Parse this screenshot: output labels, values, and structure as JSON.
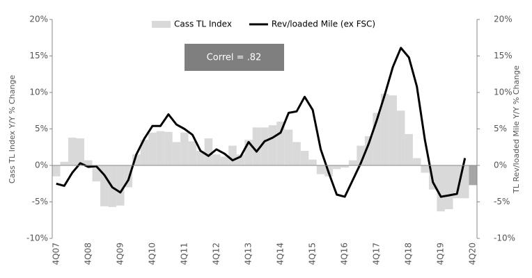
{
  "chart_data": {
    "type": "bar-line",
    "annotation": "Correl = .82",
    "y_label": "Cass TL Index Y/Y % Change",
    "y2_label": "TL Rev/loaded Mile Y/Y % Change",
    "categories": [
      "4Q07",
      null,
      null,
      null,
      "4Q08",
      null,
      null,
      null,
      "4Q09",
      null,
      null,
      null,
      "4Q10",
      null,
      null,
      null,
      "4Q11",
      null,
      null,
      null,
      "4Q12",
      null,
      null,
      null,
      "4Q13",
      null,
      null,
      null,
      "4Q14",
      null,
      null,
      null,
      "4Q15",
      null,
      null,
      null,
      "4Q16",
      null,
      null,
      null,
      "4Q17",
      null,
      null,
      null,
      "4Q18",
      null,
      null,
      null,
      "4Q19",
      null,
      null,
      null,
      "4Q20"
    ],
    "series": [
      {
        "name": "Cass TL Index",
        "type": "bar",
        "color": "#d9d9d9",
        "colors": [
          "#d9d9d9",
          "#d9d9d9",
          "#d9d9d9",
          "#d9d9d9",
          "#d9d9d9",
          "#d9d9d9",
          "#d9d9d9",
          "#d9d9d9",
          "#d9d9d9",
          "#d9d9d9",
          "#d9d9d9",
          "#d9d9d9",
          "#d9d9d9",
          "#d9d9d9",
          "#d9d9d9",
          "#d9d9d9",
          "#d9d9d9",
          "#d9d9d9",
          "#d9d9d9",
          "#d9d9d9",
          "#d9d9d9",
          "#d9d9d9",
          "#d9d9d9",
          "#d9d9d9",
          "#d9d9d9",
          "#d9d9d9",
          "#d9d9d9",
          "#d9d9d9",
          "#d9d9d9",
          "#d9d9d9",
          "#d9d9d9",
          "#d9d9d9",
          "#d9d9d9",
          "#d9d9d9",
          "#d9d9d9",
          "#d9d9d9",
          "#d9d9d9",
          "#d9d9d9",
          "#d9d9d9",
          "#d9d9d9",
          "#d9d9d9",
          "#d9d9d9",
          "#d9d9d9",
          "#d9d9d9",
          "#d9d9d9",
          "#d9d9d9",
          "#d9d9d9",
          "#d9d9d9",
          "#d9d9d9",
          "#d9d9d9",
          "#d9d9d9",
          "#d9d9d9",
          "#a6a6a6"
        ],
        "values": [
          -1.5,
          0.5,
          3.8,
          3.7,
          0.7,
          -2.2,
          -5.6,
          -5.7,
          -5.5,
          -3.0,
          1.5,
          3.5,
          4.5,
          4.7,
          4.6,
          3.2,
          4.5,
          3.3,
          2.0,
          3.7,
          1.5,
          1.2,
          2.7,
          1.5,
          3.5,
          5.2,
          5.2,
          5.5,
          6.0,
          4.9,
          3.2,
          2.0,
          0.8,
          -1.2,
          -1.5,
          -0.5,
          -0.3,
          0.7,
          2.7,
          4.0,
          7.2,
          9.8,
          9.6,
          7.5,
          4.3,
          1.0,
          -1.0,
          -3.3,
          -6.3,
          -6.0,
          -4.5,
          -4.5,
          -2.7
        ]
      },
      {
        "name": "Rev/loaded Mile (ex FSC)",
        "type": "line",
        "axis": "y2",
        "color": "#000000",
        "values": [
          -2.5,
          -2.8,
          -1.0,
          0.3,
          -0.2,
          -0.1,
          -1.3,
          -3.0,
          -3.7,
          -2.0,
          1.5,
          3.7,
          5.4,
          5.4,
          7.0,
          5.6,
          5.0,
          4.2,
          2.0,
          1.3,
          2.2,
          1.6,
          0.7,
          1.2,
          3.2,
          1.9,
          3.3,
          3.8,
          4.5,
          7.2,
          7.4,
          9.4,
          7.6,
          2.2,
          -1.0,
          -4.0,
          -4.3,
          -2.0,
          0.3,
          3.0,
          6.2,
          9.7,
          13.5,
          16.1,
          14.8,
          10.8,
          3.5,
          -2.3,
          -4.3,
          -4.1,
          -3.9,
          1.0,
          null
        ]
      }
    ],
    "ylim": [
      -10,
      20
    ],
    "yticks": [
      {
        "value": -10,
        "label": "-10%"
      },
      {
        "value": -5,
        "label": "-5%"
      },
      {
        "value": 0,
        "label": "0%"
      },
      {
        "value": 5,
        "label": "5%"
      },
      {
        "value": 10,
        "label": "10%"
      },
      {
        "value": 15,
        "label": "15%"
      },
      {
        "value": 20,
        "label": "20%"
      }
    ],
    "y2lim": [
      -10,
      20
    ],
    "y2ticks": [
      {
        "value": -10,
        "label": "-10%"
      },
      {
        "value": -5,
        "label": "-5%"
      },
      {
        "value": 0,
        "label": "0%"
      },
      {
        "value": 5,
        "label": "5%"
      },
      {
        "value": 10,
        "label": "10%"
      },
      {
        "value": 15,
        "label": "15%"
      },
      {
        "value": 20,
        "label": "20%"
      }
    ],
    "legend": "top",
    "grid": false
  }
}
